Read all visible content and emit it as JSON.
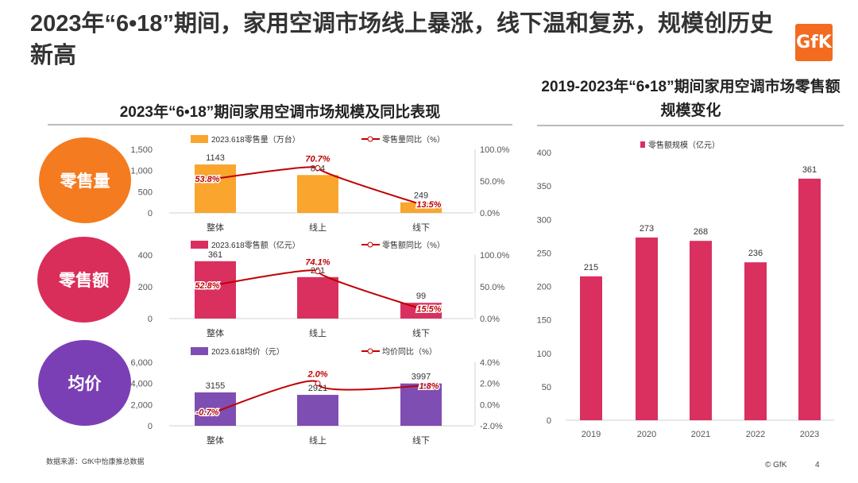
{
  "title": "2023年“6•18”期间，家用空调市场线上暴涨，线下温和复苏，规模创历史新高",
  "logo_text": "GfK",
  "left_subtitle": "2023年“6•18”期间家用空调市场规模及同比表现",
  "right_subtitle": "2019-2023年“6•18”期间家用空调市场零售额规模变化",
  "footer": "数据来源：GfK中怡康推总数据",
  "copyright": "© GfK",
  "page_number": "4",
  "colors": {
    "orange": "#f9a52e",
    "pink": "#d9305f",
    "purple": "#7e4eb2",
    "line": "#c00000",
    "red_bar": "#d9305f",
    "orange_circle": "#f58220",
    "pink_circle": "#d92e5a",
    "purple_circle": "#7b3fb5"
  },
  "chart_data": [
    {
      "type": "bar",
      "panel_label": "零售量",
      "categories": [
        "整体",
        "线上",
        "线下"
      ],
      "series": [
        {
          "name": "2023.618零售量（万台）",
          "values": [
            1143,
            894,
            249
          ]
        },
        {
          "name": "零售量同比（%）",
          "values": [
            53.8,
            70.7,
            13.5
          ],
          "type": "line",
          "labels": [
            "53.8%",
            "70.7%",
            "13.5%"
          ]
        }
      ],
      "bar_labels": [
        "1143",
        "894",
        "249"
      ],
      "y_ticks": [
        "1,500",
        "1,000",
        "500",
        "0"
      ],
      "y_ticks_values": [
        1500,
        1000,
        500,
        0
      ],
      "ylim": [
        0,
        1500
      ],
      "y2_ticks": [
        "100.0%",
        "50.0%",
        "0.0%"
      ],
      "y2_ticks_values": [
        100,
        50,
        0
      ],
      "y2lim": [
        0,
        100
      ],
      "color": "#f9a52e"
    },
    {
      "type": "bar",
      "panel_label": "零售额",
      "categories": [
        "整体",
        "线上",
        "线下"
      ],
      "series": [
        {
          "name": "2023.618零售额（亿元）",
          "values": [
            361,
            261,
            99
          ]
        },
        {
          "name": "零售额同比（%）",
          "values": [
            52.8,
            74.1,
            15.5
          ],
          "type": "line",
          "labels": [
            "52.8%",
            "74.1%",
            "15.5%"
          ]
        }
      ],
      "bar_labels": [
        "361",
        "261",
        "99"
      ],
      "y_ticks": [
        "400",
        "200",
        "0"
      ],
      "y_ticks_values": [
        400,
        200,
        0
      ],
      "ylim": [
        0,
        400
      ],
      "y2_ticks": [
        "100.0%",
        "50.0%",
        "0.0%"
      ],
      "y2_ticks_values": [
        100,
        50,
        0
      ],
      "y2lim": [
        0,
        100
      ],
      "color": "#d9305f"
    },
    {
      "type": "bar",
      "panel_label": "均价",
      "categories": [
        "整体",
        "线上",
        "线下"
      ],
      "series": [
        {
          "name": "2023.618均价（元）",
          "values": [
            3155,
            2921,
            3997
          ]
        },
        {
          "name": "均价同比（%）",
          "values": [
            -0.7,
            2.0,
            1.8
          ],
          "type": "line",
          "labels": [
            "-0.7%",
            "2.0%",
            "1.8%"
          ]
        }
      ],
      "bar_labels": [
        "3155",
        "2921",
        "3997"
      ],
      "y_ticks": [
        "6,000",
        "4,000",
        "2,000",
        "0"
      ],
      "y_ticks_values": [
        6000,
        4000,
        2000,
        0
      ],
      "ylim": [
        0,
        6000
      ],
      "y2_ticks": [
        "4.0%",
        "2.0%",
        "0.0%",
        "-2.0%"
      ],
      "y2_ticks_values": [
        4,
        2,
        0,
        -2
      ],
      "y2lim": [
        -2,
        4
      ],
      "color": "#7e4eb2"
    },
    {
      "type": "bar",
      "categories": [
        "2019",
        "2020",
        "2021",
        "2022",
        "2023"
      ],
      "series": [
        {
          "name": "零售额规模（亿元）",
          "values": [
            215,
            273,
            268,
            236,
            361
          ]
        }
      ],
      "bar_labels": [
        "215",
        "273",
        "268",
        "236",
        "361"
      ],
      "y_ticks": [
        "400",
        "350",
        "300",
        "250",
        "200",
        "150",
        "100",
        "50",
        "0"
      ],
      "y_ticks_values": [
        400,
        350,
        300,
        250,
        200,
        150,
        100,
        50,
        0
      ],
      "ylim": [
        0,
        400
      ],
      "legend": "top-left",
      "color": "#d9305f"
    }
  ]
}
